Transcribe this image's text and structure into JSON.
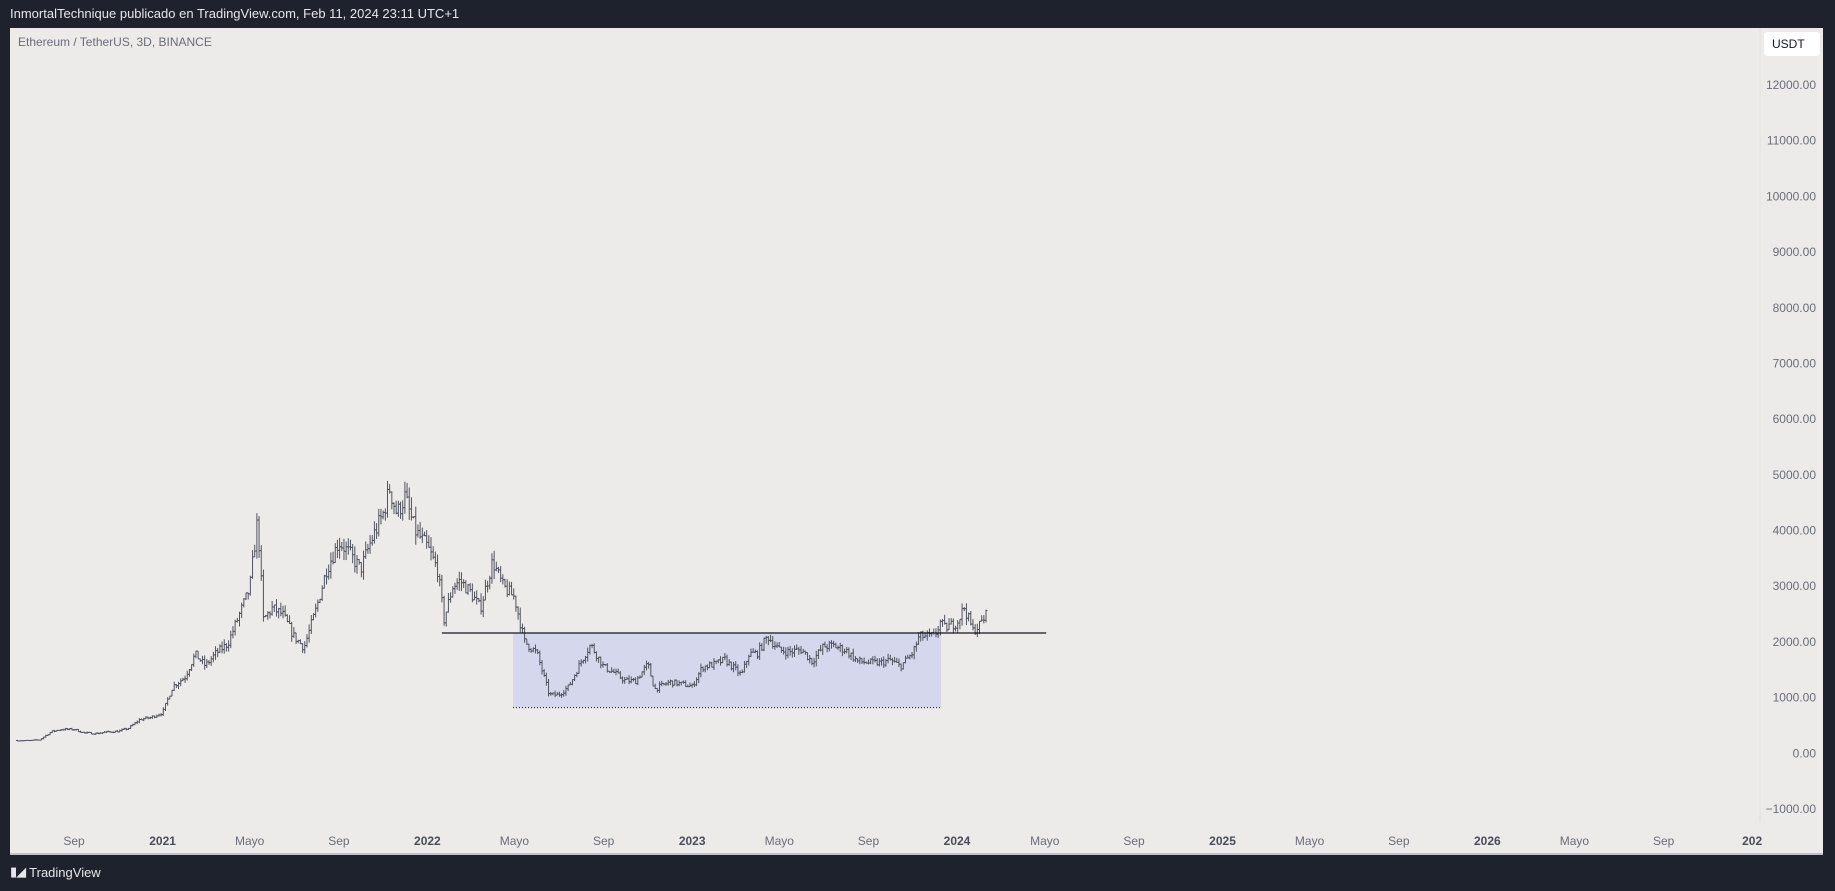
{
  "header": {
    "publisher_line": "InmortalTechnique publicado en TradingView.com, Feb 11, 2024 23:11 UTC+1"
  },
  "symbol_line": "Ethereum / TetherUS, 3D, BINANCE",
  "currency_badge": "USDT",
  "footer": {
    "logo_mark": "TV",
    "brand": "TradingView"
  },
  "colors": {
    "background": "#edebe9",
    "frame": "#1e222d",
    "bars": "#50535e",
    "range_box": "#d5d8ec",
    "line": "#131722"
  },
  "chart_data": {
    "type": "ohlc-bar",
    "timeframe": "3D",
    "price_axis": {
      "labels": [
        "12000.00",
        "11000.00",
        "10000.00",
        "9000.00",
        "8000.00",
        "7000.00",
        "6000.00",
        "5000.00",
        "4000.00",
        "3000.00",
        "2000.00",
        "1000.00",
        "0.00",
        "−1000.00"
      ],
      "values": [
        12000,
        11000,
        10000,
        9000,
        8000,
        7000,
        6000,
        5000,
        4000,
        3000,
        2000,
        1000,
        0,
        -1000
      ],
      "range": [
        -1000,
        12000
      ]
    },
    "time_axis": [
      {
        "label": "Sep",
        "date": "2020-09-01"
      },
      {
        "label": "2021",
        "date": "2021-01-01",
        "year": true
      },
      {
        "label": "Mayo",
        "date": "2021-05-01"
      },
      {
        "label": "Sep",
        "date": "2021-09-01"
      },
      {
        "label": "2022",
        "date": "2022-01-01",
        "year": true
      },
      {
        "label": "Mayo",
        "date": "2022-05-01"
      },
      {
        "label": "Sep",
        "date": "2022-09-01"
      },
      {
        "label": "2023",
        "date": "2023-01-01",
        "year": true
      },
      {
        "label": "Mayo",
        "date": "2023-05-01"
      },
      {
        "label": "Sep",
        "date": "2023-09-01"
      },
      {
        "label": "2024",
        "date": "2024-01-01",
        "year": true
      },
      {
        "label": "Mayo",
        "date": "2024-05-01"
      },
      {
        "label": "Sep",
        "date": "2024-09-01"
      },
      {
        "label": "2025",
        "date": "2025-01-01",
        "year": true
      },
      {
        "label": "Mayo",
        "date": "2025-05-01"
      },
      {
        "label": "Sep",
        "date": "2025-09-01"
      },
      {
        "label": "2026",
        "date": "2026-01-01",
        "year": true
      },
      {
        "label": "Mayo",
        "date": "2026-05-01"
      },
      {
        "label": "Sep",
        "date": "2026-09-01"
      },
      {
        "label": "202",
        "date": "2027-01-01",
        "year": true
      }
    ],
    "approx_closes": [
      [
        "2020-06-15",
        230
      ],
      [
        "2020-07-01",
        225
      ],
      [
        "2020-07-15",
        240
      ],
      [
        "2020-08-01",
        390
      ],
      [
        "2020-08-15",
        430
      ],
      [
        "2020-09-01",
        430
      ],
      [
        "2020-09-15",
        365
      ],
      [
        "2020-10-01",
        355
      ],
      [
        "2020-10-15",
        380
      ],
      [
        "2020-11-01",
        395
      ],
      [
        "2020-11-15",
        450
      ],
      [
        "2020-12-01",
        610
      ],
      [
        "2020-12-15",
        640
      ],
      [
        "2021-01-01",
        730
      ],
      [
        "2021-01-15",
        1200
      ],
      [
        "2021-02-01",
        1370
      ],
      [
        "2021-02-15",
        1780
      ],
      [
        "2021-03-01",
        1570
      ],
      [
        "2021-03-15",
        1790
      ],
      [
        "2021-04-01",
        1970
      ],
      [
        "2021-04-15",
        2430
      ],
      [
        "2021-05-01",
        2950
      ],
      [
        "2021-05-12",
        4200
      ],
      [
        "2021-05-20",
        2400
      ],
      [
        "2021-06-01",
        2600
      ],
      [
        "2021-06-15",
        2500
      ],
      [
        "2021-07-01",
        2100
      ],
      [
        "2021-07-15",
        1900
      ],
      [
        "2021-08-01",
        2600
      ],
      [
        "2021-08-15",
        3300
      ],
      [
        "2021-09-01",
        3800
      ],
      [
        "2021-09-15",
        3600
      ],
      [
        "2021-10-01",
        3300
      ],
      [
        "2021-10-15",
        3800
      ],
      [
        "2021-11-01",
        4300
      ],
      [
        "2021-11-10",
        4750
      ],
      [
        "2021-11-20",
        4300
      ],
      [
        "2021-12-01",
        4600
      ],
      [
        "2021-12-15",
        4000
      ],
      [
        "2022-01-01",
        3700
      ],
      [
        "2022-01-15",
        3300
      ],
      [
        "2022-01-24",
        2400
      ],
      [
        "2022-02-05",
        3000
      ],
      [
        "2022-02-15",
        3100
      ],
      [
        "2022-03-01",
        2900
      ],
      [
        "2022-03-15",
        2600
      ],
      [
        "2022-04-01",
        3450
      ],
      [
        "2022-04-15",
        3000
      ],
      [
        "2022-05-01",
        2800
      ],
      [
        "2022-05-15",
        2000
      ],
      [
        "2022-06-01",
        1800
      ],
      [
        "2022-06-18",
        1050
      ],
      [
        "2022-07-01",
        1050
      ],
      [
        "2022-07-15",
        1200
      ],
      [
        "2022-08-01",
        1650
      ],
      [
        "2022-08-14",
        1950
      ],
      [
        "2022-09-01",
        1550
      ],
      [
        "2022-09-15",
        1450
      ],
      [
        "2022-10-01",
        1300
      ],
      [
        "2022-10-15",
        1300
      ],
      [
        "2022-11-01",
        1600
      ],
      [
        "2022-11-10",
        1150
      ],
      [
        "2022-12-01",
        1280
      ],
      [
        "2022-12-15",
        1250
      ],
      [
        "2023-01-01",
        1200
      ],
      [
        "2023-01-15",
        1550
      ],
      [
        "2023-02-01",
        1600
      ],
      [
        "2023-02-15",
        1680
      ],
      [
        "2023-03-10",
        1400
      ],
      [
        "2023-03-20",
        1780
      ],
      [
        "2023-04-01",
        1800
      ],
      [
        "2023-04-15",
        2100
      ],
      [
        "2023-05-01",
        1850
      ],
      [
        "2023-05-15",
        1820
      ],
      [
        "2023-06-01",
        1860
      ],
      [
        "2023-06-15",
        1650
      ],
      [
        "2023-07-01",
        1920
      ],
      [
        "2023-07-15",
        1930
      ],
      [
        "2023-08-01",
        1850
      ],
      [
        "2023-08-17",
        1650
      ],
      [
        "2023-09-01",
        1630
      ],
      [
        "2023-09-15",
        1620
      ],
      [
        "2023-10-01",
        1670
      ],
      [
        "2023-10-15",
        1560
      ],
      [
        "2023-11-01",
        1800
      ],
      [
        "2023-11-10",
        2100
      ],
      [
        "2023-12-01",
        2100
      ],
      [
        "2023-12-09",
        2350
      ],
      [
        "2023-12-15",
        2250
      ],
      [
        "2024-01-01",
        2350
      ],
      [
        "2024-01-11",
        2620
      ],
      [
        "2024-01-23",
        2200
      ],
      [
        "2024-02-01",
        2300
      ],
      [
        "2024-02-11",
        2500
      ]
    ],
    "drawings": {
      "range_box": {
        "from": "2022-04-29",
        "to": "2023-12-10",
        "top": 2160,
        "bottom": 820
      },
      "support_line": {
        "from": "2022-01-21",
        "to": "2024-05-03",
        "price": 2160
      },
      "range_bottom_dotted": {
        "from": "2022-04-29",
        "to": "2023-12-10",
        "price": 820
      }
    }
  }
}
